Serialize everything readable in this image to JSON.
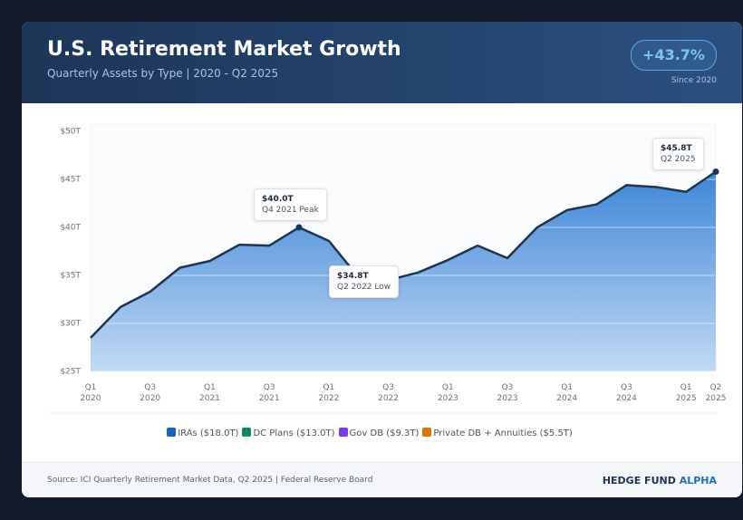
{
  "header": {
    "title": "U.S. Retirement Market Growth",
    "subtitle": "Quarterly Assets by Type | 2020 - Q2 2025",
    "badge": "+43.7%",
    "badge_note": "Since 2020"
  },
  "chart_data": {
    "type": "area",
    "categories": [
      "Q1 2020",
      null,
      "Q3 2020",
      null,
      "Q1 2021",
      null,
      "Q3 2021",
      null,
      "Q1 2022",
      null,
      "Q3 2022",
      null,
      "Q1 2023",
      null,
      "Q3 2023",
      null,
      "Q1 2024",
      null,
      "Q3 2024",
      null,
      "Q1 2025",
      "Q2 2025"
    ],
    "series": [
      {
        "name": "IRAs ($18.0T)",
        "color": "#1565c0",
        "values": [
          28.5,
          31.7,
          33.3,
          35.8,
          36.5,
          38.2,
          38.1,
          40.0,
          38.6,
          34.8,
          34.5,
          35.3,
          36.6,
          38.1,
          36.8,
          40.0,
          41.8,
          42.4,
          44.4,
          44.2,
          43.7,
          45.8
        ]
      },
      {
        "name": "DC Plans ($13.0T)",
        "color": "#0e8a5f"
      },
      {
        "name": "Gov DB ($9.3T)",
        "color": "#7c3aed"
      },
      {
        "name": "Private DB + Annuities ($5.5T)",
        "color": "#d97706"
      }
    ],
    "ylim": [
      25,
      50
    ],
    "yticks": [
      {
        "value": 25,
        "label": "$25T"
      },
      {
        "value": 30,
        "label": "$30T"
      },
      {
        "value": 35,
        "label": "$35T"
      },
      {
        "value": 40,
        "label": "$40T"
      },
      {
        "value": 45,
        "label": "$45T"
      },
      {
        "value": 50,
        "label": "$50T"
      }
    ],
    "grid": true,
    "annotations": [
      {
        "label": "$40.0T",
        "note": "Q4 2021 Peak"
      },
      {
        "label": "$34.8T",
        "note": "Q2 2022 Low"
      },
      {
        "label": "$45.8T",
        "note": "Q2 2025"
      }
    ]
  },
  "footer": {
    "source": "Source: ICI Quarterly Retirement Market Data, Q2 2025 | Federal Reserve Board",
    "brand": "HEDGE FUND",
    "brand_accent": "ALPHA"
  }
}
